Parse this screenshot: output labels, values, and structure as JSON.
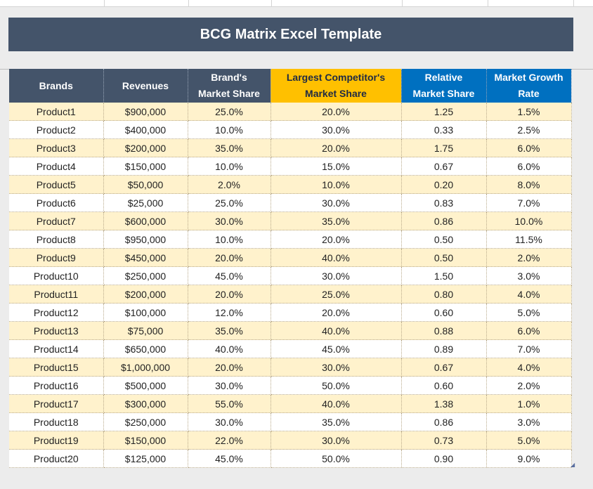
{
  "title": "BCG Matrix Excel Template",
  "headers": {
    "brands": "Brands",
    "revenues": "Revenues",
    "brand_share_line1": "Brand's",
    "brand_share_line2": "Market Share",
    "competitor_line1": "Largest Competitor's",
    "competitor_line2": "Market Share",
    "relative_line1": "Relative",
    "relative_line2": "Market Share",
    "growth_line1": "Market Growth",
    "growth_line2": "Rate"
  },
  "colors": {
    "banner": "#44546a",
    "header_dark": "#44546a",
    "header_yellow": "#ffc000",
    "header_blue": "#0070c0",
    "row_band": "#fff2cc"
  },
  "rows": [
    {
      "brand": "Product1",
      "revenue": "$900,000",
      "share": "25.0%",
      "competitor": "20.0%",
      "relative": "1.25",
      "growth": "1.5%"
    },
    {
      "brand": "Product2",
      "revenue": "$400,000",
      "share": "10.0%",
      "competitor": "30.0%",
      "relative": "0.33",
      "growth": "2.5%"
    },
    {
      "brand": "Product3",
      "revenue": "$200,000",
      "share": "35.0%",
      "competitor": "20.0%",
      "relative": "1.75",
      "growth": "6.0%"
    },
    {
      "brand": "Product4",
      "revenue": "$150,000",
      "share": "10.0%",
      "competitor": "15.0%",
      "relative": "0.67",
      "growth": "6.0%"
    },
    {
      "brand": "Product5",
      "revenue": "$50,000",
      "share": "2.0%",
      "competitor": "10.0%",
      "relative": "0.20",
      "growth": "8.0%"
    },
    {
      "brand": "Product6",
      "revenue": "$25,000",
      "share": "25.0%",
      "competitor": "30.0%",
      "relative": "0.83",
      "growth": "7.0%"
    },
    {
      "brand": "Product7",
      "revenue": "$600,000",
      "share": "30.0%",
      "competitor": "35.0%",
      "relative": "0.86",
      "growth": "10.0%"
    },
    {
      "brand": "Product8",
      "revenue": "$950,000",
      "share": "10.0%",
      "competitor": "20.0%",
      "relative": "0.50",
      "growth": "11.5%"
    },
    {
      "brand": "Product9",
      "revenue": "$450,000",
      "share": "20.0%",
      "competitor": "40.0%",
      "relative": "0.50",
      "growth": "2.0%"
    },
    {
      "brand": "Product10",
      "revenue": "$250,000",
      "share": "45.0%",
      "competitor": "30.0%",
      "relative": "1.50",
      "growth": "3.0%"
    },
    {
      "brand": "Product11",
      "revenue": "$200,000",
      "share": "20.0%",
      "competitor": "25.0%",
      "relative": "0.80",
      "growth": "4.0%"
    },
    {
      "brand": "Product12",
      "revenue": "$100,000",
      "share": "12.0%",
      "competitor": "20.0%",
      "relative": "0.60",
      "growth": "5.0%"
    },
    {
      "brand": "Product13",
      "revenue": "$75,000",
      "share": "35.0%",
      "competitor": "40.0%",
      "relative": "0.88",
      "growth": "6.0%"
    },
    {
      "brand": "Product14",
      "revenue": "$650,000",
      "share": "40.0%",
      "competitor": "45.0%",
      "relative": "0.89",
      "growth": "7.0%"
    },
    {
      "brand": "Product15",
      "revenue": "$1,000,000",
      "share": "20.0%",
      "competitor": "30.0%",
      "relative": "0.67",
      "growth": "4.0%"
    },
    {
      "brand": "Product16",
      "revenue": "$500,000",
      "share": "30.0%",
      "competitor": "50.0%",
      "relative": "0.60",
      "growth": "2.0%"
    },
    {
      "brand": "Product17",
      "revenue": "$300,000",
      "share": "55.0%",
      "competitor": "40.0%",
      "relative": "1.38",
      "growth": "1.0%"
    },
    {
      "brand": "Product18",
      "revenue": "$250,000",
      "share": "30.0%",
      "competitor": "35.0%",
      "relative": "0.86",
      "growth": "3.0%"
    },
    {
      "brand": "Product19",
      "revenue": "$150,000",
      "share": "22.0%",
      "competitor": "30.0%",
      "relative": "0.73",
      "growth": "5.0%"
    },
    {
      "brand": "Product20",
      "revenue": "$125,000",
      "share": "45.0%",
      "competitor": "50.0%",
      "relative": "0.90",
      "growth": "9.0%"
    }
  ]
}
